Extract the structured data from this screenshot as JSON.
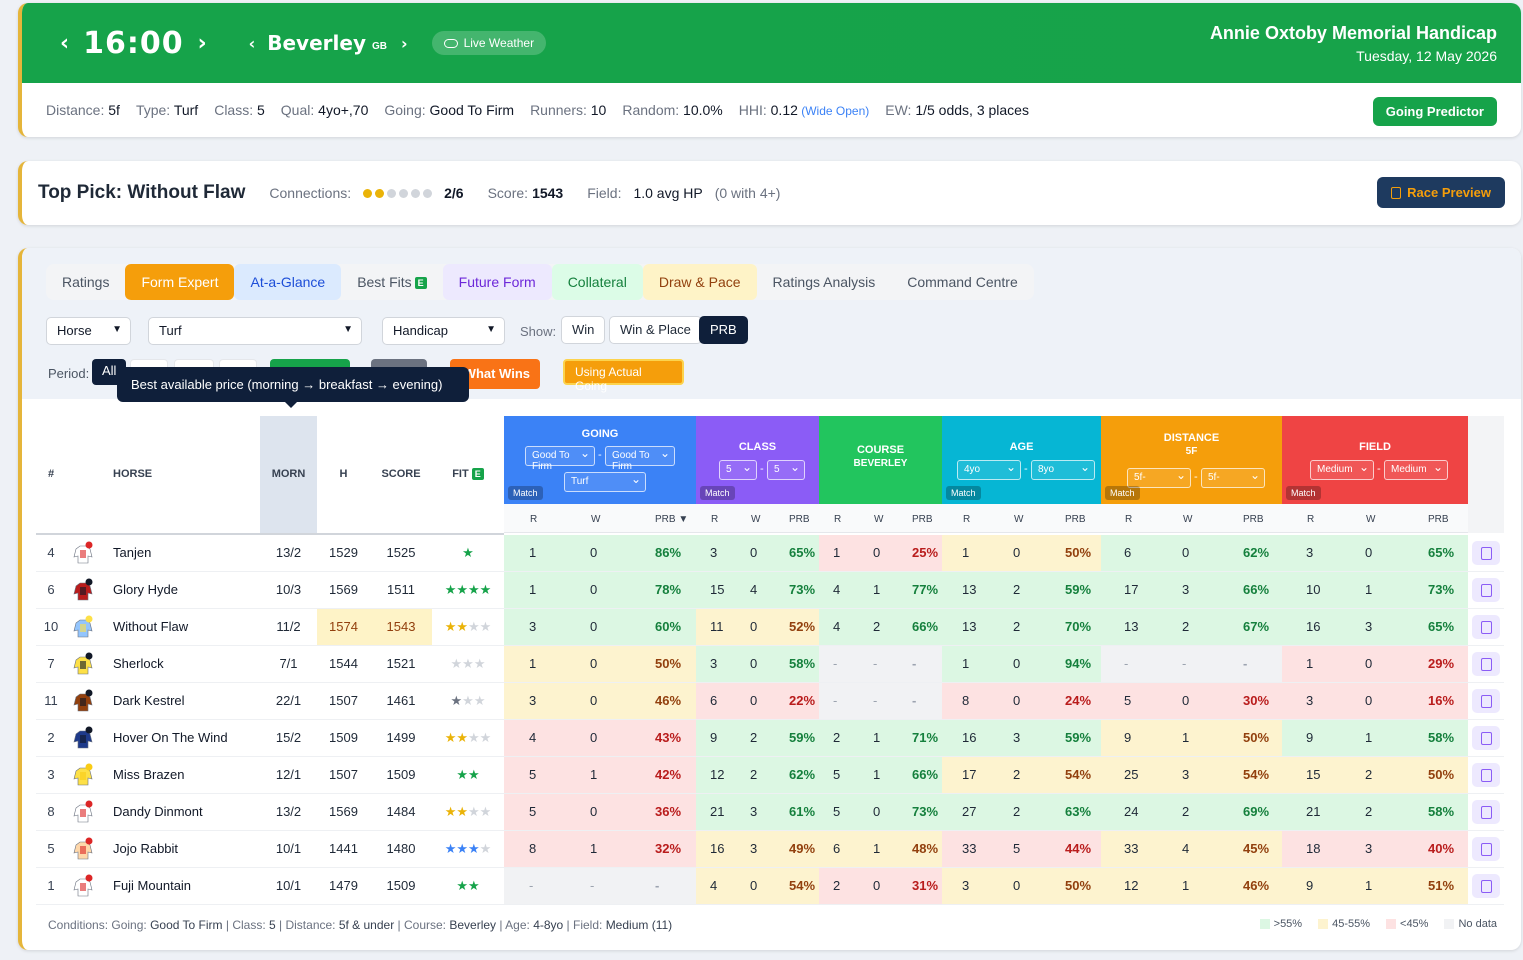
{
  "header": {
    "time": "16:00",
    "course": "Beverley",
    "country": "GB",
    "live_weather": "Live Weather",
    "race_title": "Annie Oxtoby Memorial Handicap",
    "race_date": "Tuesday, 12 May 2026",
    "stats": [
      {
        "label": "Distance:",
        "value": "5f"
      },
      {
        "label": "Type:",
        "value": "Turf"
      },
      {
        "label": "Class:",
        "value": "5"
      },
      {
        "label": "Qual:",
        "value": "4yo+,70"
      },
      {
        "label": "Going:",
        "value": "Good To Firm"
      },
      {
        "label": "Runners:",
        "value": "10"
      },
      {
        "label": "Random:",
        "value": "10.0%"
      },
      {
        "label": "HHI:",
        "value": "0.12"
      },
      {
        "label": "EW:",
        "value": "1/5 odds, 3 places"
      }
    ],
    "hhi_note": "(Wide Open)",
    "going_predictor": "Going Predictor"
  },
  "top_pick": {
    "title": "Top Pick: Without Flaw",
    "connections_label": "Connections:",
    "connections_value": "2/6",
    "connections_rating": 2,
    "connections_max": 6,
    "score_label": "Score:",
    "score_value": "1543",
    "field_label": "Field:",
    "field_value": "1.0 avg HP",
    "field_note": "(0 with 4+)",
    "race_preview": "Race Preview"
  },
  "tabs": [
    "Ratings",
    "Form Expert",
    "At-a-Glance",
    "Best Fits",
    "Future Form",
    "Collateral",
    "Draw & Pace",
    "Ratings Analysis",
    "Command Centre"
  ],
  "tab_badge": "E",
  "filters": {
    "horse": "Horse",
    "surface": "Turf",
    "race_type": "Handicap",
    "show_label": "Show:",
    "show_options": [
      "Win",
      "Win & Place",
      "PRB"
    ],
    "period_label": "Period:",
    "period_all": "All",
    "what_wins": "What Wins",
    "actual_going": "Using Actual Going",
    "tooltip": "Best available price (morning → breakfast → evening)"
  },
  "table": {
    "col_num": "#",
    "col_horse": "HORSE",
    "col_morn": "MORN",
    "col_h": "H",
    "col_score": "SCORE",
    "col_fit": "FIT",
    "fit_badge": "E",
    "sub_r": "R",
    "sub_w": "W",
    "sub_prb": "PRB",
    "sub_prb_sorted": "PRB ▼",
    "match": "Match",
    "groups": {
      "going": {
        "name": "GOING",
        "from": "Good To Firm",
        "to": "Good To Firm",
        "surface": "Turf"
      },
      "class": {
        "name": "CLASS",
        "from": "5",
        "to": "5"
      },
      "course": {
        "name": "COURSE",
        "sub": "BEVERLEY"
      },
      "age": {
        "name": "AGE",
        "from": "4yo",
        "to": "8yo"
      },
      "distance": {
        "name": "DISTANCE",
        "sub": "5F",
        "from": "5f-",
        "to": "5f-"
      },
      "field": {
        "name": "FIELD",
        "from": "Medium",
        "to": "Medium"
      }
    },
    "rows": [
      {
        "num": "4",
        "name": "Tanjen",
        "morn": "13/2",
        "h": "1529",
        "score": "1525",
        "fit": 1,
        "stats": [
          [
            "1",
            "0",
            "86%"
          ],
          [
            "3",
            "0",
            "65%"
          ],
          [
            "1",
            "0",
            "25%"
          ],
          [
            "1",
            "0",
            "50%"
          ],
          [
            "6",
            "0",
            "62%"
          ],
          [
            "3",
            "0",
            "65%"
          ]
        ]
      },
      {
        "num": "6",
        "name": "Glory Hyde",
        "morn": "10/3",
        "h": "1569",
        "score": "1511",
        "fit": 4,
        "stats": [
          [
            "1",
            "0",
            "78%"
          ],
          [
            "15",
            "4",
            "73%"
          ],
          [
            "4",
            "1",
            "77%"
          ],
          [
            "13",
            "2",
            "59%"
          ],
          [
            "17",
            "3",
            "66%"
          ],
          [
            "10",
            "1",
            "73%"
          ]
        ]
      },
      {
        "num": "10",
        "name": "Without Flaw",
        "morn": "11/2",
        "h": "1574",
        "score": "1543",
        "fit": 2.5,
        "stats": [
          [
            "3",
            "0",
            "60%"
          ],
          [
            "11",
            "0",
            "52%"
          ],
          [
            "4",
            "2",
            "66%"
          ],
          [
            "13",
            "2",
            "70%"
          ],
          [
            "13",
            "2",
            "67%"
          ],
          [
            "16",
            "3",
            "65%"
          ]
        ]
      },
      {
        "num": "7",
        "name": "Sherlock",
        "morn": "7/1",
        "h": "1544",
        "score": "1521",
        "fit": 0,
        "stats": [
          [
            "1",
            "0",
            "50%"
          ],
          [
            "3",
            "0",
            "58%"
          ],
          [
            "-",
            "-",
            "-"
          ],
          [
            "1",
            "0",
            "94%"
          ],
          [
            "-",
            "-",
            "-"
          ],
          [
            "1",
            "0",
            "29%"
          ]
        ]
      },
      {
        "num": "11",
        "name": "Dark Kestrel",
        "morn": "22/1",
        "h": "1507",
        "score": "1461",
        "fit": 1,
        "stats": [
          [
            "3",
            "0",
            "46%"
          ],
          [
            "6",
            "0",
            "22%"
          ],
          [
            "-",
            "-",
            "-"
          ],
          [
            "8",
            "0",
            "24%"
          ],
          [
            "5",
            "0",
            "30%"
          ],
          [
            "3",
            "0",
            "16%"
          ]
        ]
      },
      {
        "num": "2",
        "name": "Hover On The Wind",
        "morn": "15/2",
        "h": "1509",
        "score": "1499",
        "fit": 2,
        "stats": [
          [
            "4",
            "0",
            "43%"
          ],
          [
            "9",
            "2",
            "59%"
          ],
          [
            "2",
            "1",
            "71%"
          ],
          [
            "16",
            "3",
            "59%"
          ],
          [
            "9",
            "1",
            "50%"
          ],
          [
            "9",
            "1",
            "58%"
          ]
        ]
      },
      {
        "num": "3",
        "name": "Miss Brazen",
        "morn": "12/1",
        "h": "1507",
        "score": "1509",
        "fit": 2,
        "stats": [
          [
            "5",
            "1",
            "42%"
          ],
          [
            "12",
            "2",
            "62%"
          ],
          [
            "5",
            "1",
            "66%"
          ],
          [
            "17",
            "2",
            "54%"
          ],
          [
            "25",
            "3",
            "54%"
          ],
          [
            "15",
            "2",
            "50%"
          ]
        ]
      },
      {
        "num": "8",
        "name": "Dandy Dinmont",
        "morn": "13/2",
        "h": "1569",
        "score": "1484",
        "fit": 2,
        "stats": [
          [
            "5",
            "0",
            "36%"
          ],
          [
            "21",
            "3",
            "61%"
          ],
          [
            "5",
            "0",
            "73%"
          ],
          [
            "27",
            "2",
            "63%"
          ],
          [
            "24",
            "2",
            "69%"
          ],
          [
            "21",
            "2",
            "58%"
          ]
        ]
      },
      {
        "num": "5",
        "name": "Jojo Rabbit",
        "morn": "10/1",
        "h": "1441",
        "score": "1480",
        "fit": 3,
        "stats": [
          [
            "8",
            "1",
            "32%"
          ],
          [
            "16",
            "3",
            "49%"
          ],
          [
            "6",
            "1",
            "48%"
          ],
          [
            "33",
            "5",
            "44%"
          ],
          [
            "33",
            "4",
            "45%"
          ],
          [
            "18",
            "3",
            "40%"
          ]
        ]
      },
      {
        "num": "1",
        "name": "Fuji Mountain",
        "morn": "10/1",
        "h": "1479",
        "score": "1509",
        "fit": 2,
        "stats": [
          [
            "-",
            "-",
            "-"
          ],
          [
            "4",
            "0",
            "54%"
          ],
          [
            "2",
            "0",
            "31%"
          ],
          [
            "3",
            "0",
            "50%"
          ],
          [
            "12",
            "1",
            "46%"
          ],
          [
            "9",
            "1",
            "51%"
          ]
        ]
      }
    ]
  },
  "footer": {
    "conditions": [
      {
        "label": "Conditions: Going: ",
        "value": "Good To Firm"
      },
      {
        "label": " | Class: ",
        "value": "5"
      },
      {
        "label": " | Distance: ",
        "value": "5f & under"
      },
      {
        "label": " | Course: ",
        "value": "Beverley"
      },
      {
        "label": " | Age: ",
        "value": "4-8yo"
      },
      {
        "label": " | Field: ",
        "value": "Medium (11)"
      }
    ],
    "legend": [
      ">55%",
      "45-55%",
      "<45%",
      "No data"
    ]
  },
  "colors": {
    "header_green": "#16a34a",
    "going": "#3b82f6",
    "class": "#8b5cf6",
    "course": "#22c55e",
    "age": "#06b6d4",
    "distance": "#f59e0b",
    "field": "#ef4444"
  },
  "silk_colors": [
    [
      "#ffffff",
      "#dc2626"
    ],
    [
      "#b91c1c",
      "#111827"
    ],
    [
      "#93c5fd",
      "#fde047"
    ],
    [
      "#fde047",
      "#111827"
    ],
    [
      "#92400e",
      "#111827"
    ],
    [
      "#1e3a8a",
      "#111827"
    ],
    [
      "#fde047",
      "#facc15"
    ],
    [
      "#ffffff",
      "#dc2626"
    ],
    [
      "#fed7aa",
      "#dc2626"
    ],
    [
      "#ffffff",
      "#dc2626"
    ]
  ]
}
